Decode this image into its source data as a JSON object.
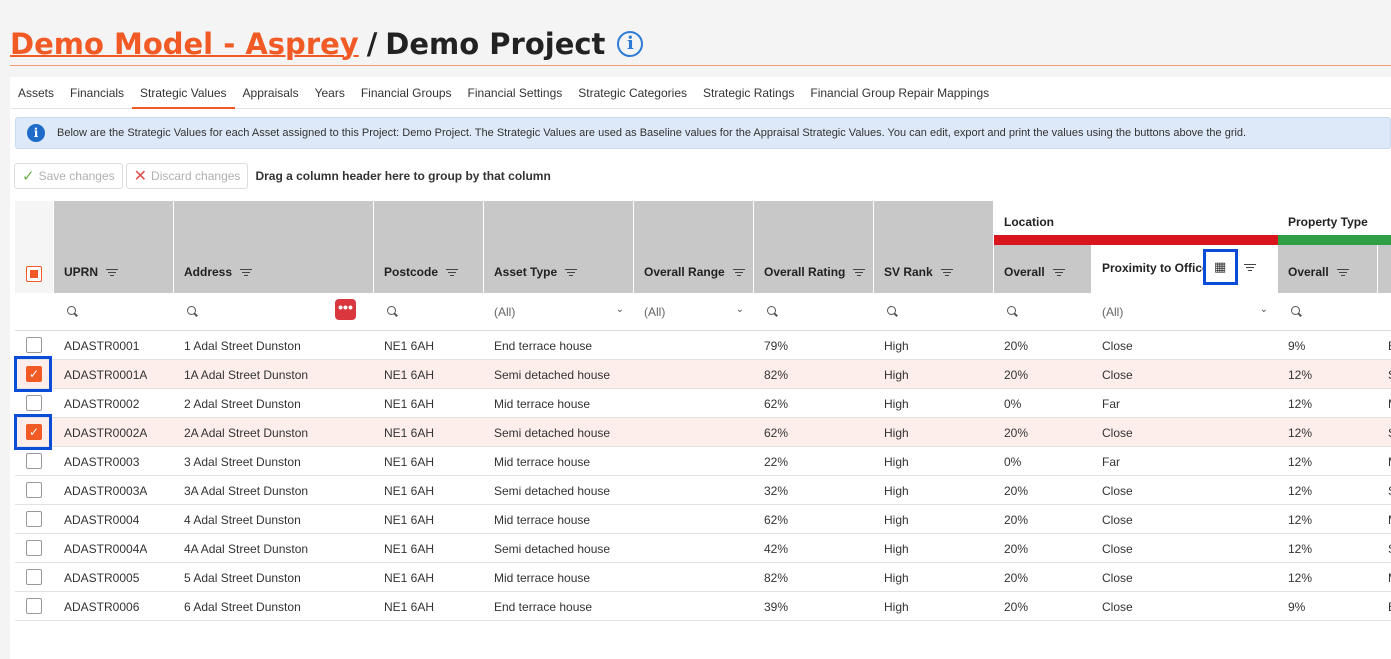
{
  "header": {
    "model": "Demo Model - Asprey",
    "separator": "/",
    "project": "Demo Project"
  },
  "tabs": [
    {
      "label": "Assets",
      "active": false
    },
    {
      "label": "Financials",
      "active": false
    },
    {
      "label": "Strategic Values",
      "active": true
    },
    {
      "label": "Appraisals",
      "active": false
    },
    {
      "label": "Years",
      "active": false
    },
    {
      "label": "Financial Groups",
      "active": false
    },
    {
      "label": "Financial Settings",
      "active": false
    },
    {
      "label": "Strategic Categories",
      "active": false
    },
    {
      "label": "Strategic Ratings",
      "active": false
    },
    {
      "label": "Financial Group Repair Mappings",
      "active": false
    }
  ],
  "info_banner": "Below are the Strategic Values for each Asset assigned to this Project: Demo Project. The Strategic Values are used as Baseline values for the Appraisal Strategic Values. You can edit, export and print the values using the buttons above the grid.",
  "toolbar": {
    "save_label": "Save changes",
    "discard_label": "Discard changes",
    "group_hint": "Drag a column header here to group by that column"
  },
  "columns": {
    "uprn": "UPRN",
    "address": "Address",
    "postcode": "Postcode",
    "asset_type": "Asset Type",
    "overall_range": "Overall Range",
    "overall_rating": "Overall Rating",
    "sv_rank": "SV Rank",
    "location_band": "Location",
    "location_overall": "Overall",
    "proximity": "Proximity to Office",
    "property_band": "Property Type",
    "property_overall": "Overall"
  },
  "band_colors": {
    "location": "#d8141c",
    "property": "#2f9e44"
  },
  "filters": {
    "asset_type": "(All)",
    "overall_range": "(All)",
    "proximity": "(All)"
  },
  "rows": [
    {
      "uprn": "ADASTR0001",
      "address": "1 Adal Street Dunston",
      "postcode": "NE1 6AH",
      "asset_type": "End terrace house",
      "overall_range": "",
      "overall_rating": "79%",
      "sv_rank": "High",
      "loc_overall": "20%",
      "proximity": "Close",
      "prop_overall": "9%",
      "next": "E",
      "selected": false
    },
    {
      "uprn": "ADASTR0001A",
      "address": "1A Adal Street Dunston",
      "postcode": "NE1 6AH",
      "asset_type": "Semi detached house",
      "overall_range": "",
      "overall_rating": "82%",
      "sv_rank": "High",
      "loc_overall": "20%",
      "proximity": "Close",
      "prop_overall": "12%",
      "next": "S",
      "selected": true
    },
    {
      "uprn": "ADASTR0002",
      "address": "2 Adal Street Dunston",
      "postcode": "NE1 6AH",
      "asset_type": "Mid terrace house",
      "overall_range": "",
      "overall_rating": "62%",
      "sv_rank": "High",
      "loc_overall": "0%",
      "proximity": "Far",
      "prop_overall": "12%",
      "next": "M",
      "selected": false
    },
    {
      "uprn": "ADASTR0002A",
      "address": "2A Adal Street Dunston",
      "postcode": "NE1 6AH",
      "asset_type": "Semi detached house",
      "overall_range": "",
      "overall_rating": "62%",
      "sv_rank": "High",
      "loc_overall": "20%",
      "proximity": "Close",
      "prop_overall": "12%",
      "next": "S",
      "selected": true
    },
    {
      "uprn": "ADASTR0003",
      "address": "3 Adal Street Dunston",
      "postcode": "NE1 6AH",
      "asset_type": "Mid terrace house",
      "overall_range": "",
      "overall_rating": "22%",
      "sv_rank": "High",
      "loc_overall": "0%",
      "proximity": "Far",
      "prop_overall": "12%",
      "next": "M",
      "selected": false
    },
    {
      "uprn": "ADASTR0003A",
      "address": "3A Adal Street Dunston",
      "postcode": "NE1 6AH",
      "asset_type": "Semi detached house",
      "overall_range": "",
      "overall_rating": "32%",
      "sv_rank": "High",
      "loc_overall": "20%",
      "proximity": "Close",
      "prop_overall": "12%",
      "next": "S",
      "selected": false
    },
    {
      "uprn": "ADASTR0004",
      "address": "4 Adal Street Dunston",
      "postcode": "NE1 6AH",
      "asset_type": "Mid terrace house",
      "overall_range": "",
      "overall_rating": "62%",
      "sv_rank": "High",
      "loc_overall": "20%",
      "proximity": "Close",
      "prop_overall": "12%",
      "next": "M",
      "selected": false
    },
    {
      "uprn": "ADASTR0004A",
      "address": "4A Adal Street Dunston",
      "postcode": "NE1 6AH",
      "asset_type": "Semi detached house",
      "overall_range": "",
      "overall_rating": "42%",
      "sv_rank": "High",
      "loc_overall": "20%",
      "proximity": "Close",
      "prop_overall": "12%",
      "next": "S",
      "selected": false
    },
    {
      "uprn": "ADASTR0005",
      "address": "5 Adal Street Dunston",
      "postcode": "NE1 6AH",
      "asset_type": "Mid terrace house",
      "overall_range": "",
      "overall_rating": "82%",
      "sv_rank": "High",
      "loc_overall": "20%",
      "proximity": "Close",
      "prop_overall": "12%",
      "next": "M",
      "selected": false
    },
    {
      "uprn": "ADASTR0006",
      "address": "6 Adal Street Dunston",
      "postcode": "NE1 6AH",
      "asset_type": "End terrace house",
      "overall_range": "",
      "overall_rating": "39%",
      "sv_rank": "High",
      "loc_overall": "20%",
      "proximity": "Close",
      "prop_overall": "9%",
      "next": "E",
      "selected": false
    }
  ]
}
